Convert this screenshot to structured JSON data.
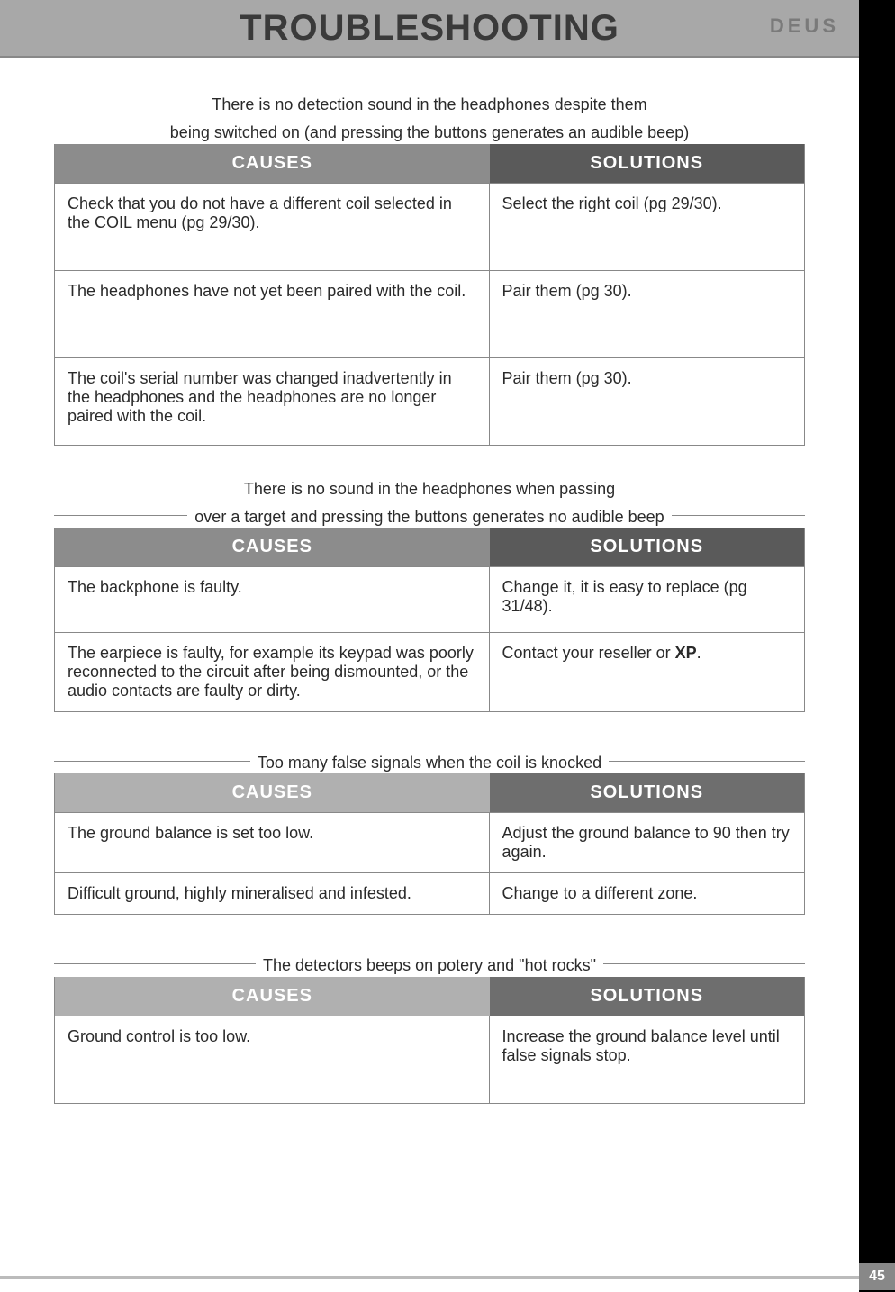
{
  "header": {
    "title": "TROUBLESHOOTING",
    "brand": "DEUS"
  },
  "page_number": "45",
  "columns": {
    "causes": "CAUSES",
    "solutions": "SOLUTIONS"
  },
  "sections": [
    {
      "title_line1": "There is no detection sound in the headphones despite them",
      "title_line2": "being switched on (and pressing the buttons generates an audible beep)",
      "header_style": "dark",
      "rows": [
        {
          "cause": "Check that you do not have a different coil selected in the COIL menu (pg 29/30).",
          "solution": "Select the right coil (pg 29/30).",
          "height": "tall"
        },
        {
          "cause": "The headphones have not yet been paired with the coil.",
          "solution": "Pair them  (pg 30).",
          "height": "tall"
        },
        {
          "cause": "The coil's serial number was changed inadvertently in the headphones and the headphones are no longer paired with the coil.",
          "solution": "Pair them  (pg 30).",
          "height": "tall"
        }
      ]
    },
    {
      "title_line1": "There is no sound in the headphones when passing",
      "title_line2": "over a target and pressing the buttons generates no audible beep",
      "header_style": "dark",
      "rows": [
        {
          "cause": "The backphone is faulty.",
          "solution": "Change it, it is easy to replace (pg 31/48).",
          "height": "med"
        },
        {
          "cause": "The earpiece is faulty, for example its keypad was poorly reconnected to the circuit after being dismounted, or the audio contacts are faulty or dirty.",
          "solution_pre": "Contact your reseller or ",
          "solution_bold": "XP",
          "solution_post": ".",
          "height": "med"
        }
      ]
    },
    {
      "title_line1": "Too many false signals when the coil is knocked",
      "title_line2": "",
      "header_style": "light",
      "rows": [
        {
          "cause": "The ground balance is set too low.",
          "solution": "Adjust the ground balance to 90 then try again."
        },
        {
          "cause": "Difficult ground, highly mineralised and infested.",
          "solution": "Change to a different zone."
        }
      ]
    },
    {
      "title_line1": "The detectors beeps on potery and \"hot rocks\"",
      "title_line2": "",
      "header_style": "light",
      "rows": [
        {
          "cause": "Ground control is too low.",
          "solution": "Increase the ground balance level until false signals stop.",
          "height": "tall"
        }
      ]
    }
  ],
  "styles": {
    "header_dark": {
      "causes_bg": "#8c8c8c",
      "sol_bg": "#5a5a5a"
    },
    "header_light": {
      "causes_bg": "#b0b0b0",
      "sol_bg": "#6e6e6e"
    }
  }
}
